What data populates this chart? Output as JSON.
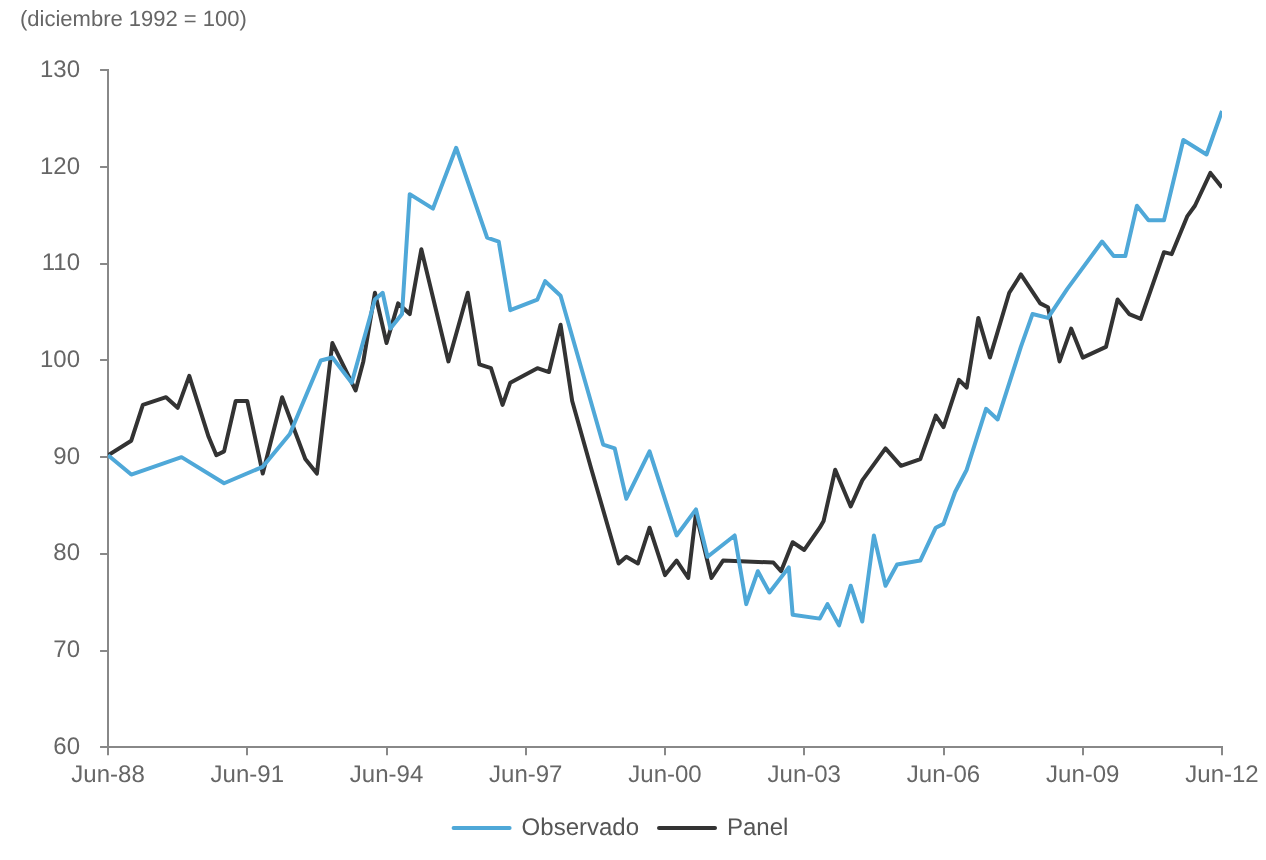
{
  "chart_data": {
    "type": "line",
    "ylabel": "(diciembre 1992 = 100)",
    "xlim": [
      "1988-06",
      "2012-06"
    ],
    "xticks": [
      {
        "value": "1988-06",
        "label": "Jun-88"
      },
      {
        "value": "1991-06",
        "label": "Jun-91"
      },
      {
        "value": "1994-06",
        "label": "Jun-94"
      },
      {
        "value": "1997-06",
        "label": "Jun-97"
      },
      {
        "value": "2000-06",
        "label": "Jun-00"
      },
      {
        "value": "2003-06",
        "label": "Jun-03"
      },
      {
        "value": "2006-06",
        "label": "Jun-06"
      },
      {
        "value": "2009-06",
        "label": "Jun-09"
      },
      {
        "value": "2012-06",
        "label": "Jun-12"
      }
    ],
    "ylim": [
      60,
      130
    ],
    "yticks": [
      60,
      70,
      80,
      90,
      100,
      110,
      120,
      130
    ],
    "grid": false,
    "legend": "bottom",
    "marker": "none",
    "line_style": "solid",
    "series": [
      {
        "name": "Observado",
        "color": "#4fa8d8",
        "x": [
          "1988-06",
          "1988-12",
          "1990-01",
          "1990-12",
          "1991-10",
          "1992-05",
          "1993-01",
          "1993-04",
          "1993-09",
          "1994-03",
          "1994-05",
          "1994-07",
          "1994-10",
          "1994-12",
          "1995-06",
          "1995-12",
          "1996-08",
          "1996-11",
          "1997-02",
          "1997-09",
          "1997-11",
          "1998-03",
          "1999-02",
          "1999-05",
          "1999-08",
          "2000-02",
          "2000-09",
          "2001-02",
          "2001-05",
          "2001-12",
          "2002-03",
          "2002-06",
          "2002-09",
          "2003-02",
          "2003-03",
          "2003-10",
          "2003-12",
          "2004-03",
          "2004-06",
          "2004-09",
          "2004-12",
          "2005-03",
          "2005-06",
          "2005-12",
          "2006-04",
          "2006-06",
          "2006-09",
          "2006-12",
          "2007-05",
          "2007-08",
          "2008-02",
          "2008-05",
          "2008-09",
          "2009-02",
          "2009-11",
          "2010-02",
          "2010-05",
          "2010-08",
          "2010-11",
          "2011-03",
          "2011-08",
          "2012-02",
          "2012-06"
        ],
        "values": [
          90.2,
          88.2,
          90,
          87.3,
          89,
          92.4,
          100,
          100.3,
          97.7,
          106.3,
          107,
          103.3,
          104.8,
          117.2,
          115.7,
          122,
          112.7,
          112.3,
          105.2,
          106.3,
          108.2,
          106.7,
          91.3,
          90.9,
          85.7,
          90.6,
          81.9,
          84.6,
          79.7,
          81.9,
          74.8,
          78.2,
          76,
          78.6,
          73.7,
          73.3,
          74.8,
          72.6,
          76.7,
          73,
          81.9,
          76.7,
          78.9,
          79.3,
          82.7,
          83.1,
          86.4,
          88.7,
          95,
          93.9,
          101.4,
          104.8,
          104.4,
          107.4,
          112.3,
          110.8,
          110.8,
          116,
          114.5,
          114.5,
          122.8,
          121.3,
          125.8
        ]
      },
      {
        "name": "Panel",
        "color": "#333333",
        "x": [
          "1988-06",
          "1988-12",
          "1989-03",
          "1989-09",
          "1989-12",
          "1990-03",
          "1990-08",
          "1990-10",
          "1990-12",
          "1991-03",
          "1991-06",
          "1991-10",
          "1992-03",
          "1992-09",
          "1992-12",
          "1993-04",
          "1993-10",
          "1993-12",
          "1994-03",
          "1994-06",
          "1994-09",
          "1994-12",
          "1995-03",
          "1995-10",
          "1996-03",
          "1996-06",
          "1996-09",
          "1996-12",
          "1997-02",
          "1997-09",
          "1997-12",
          "1998-03",
          "1998-06",
          "1998-11",
          "1999-06",
          "1999-08",
          "1999-11",
          "2000-02",
          "2000-06",
          "2000-09",
          "2000-12",
          "2001-02",
          "2001-06",
          "2001-09",
          "2002-10",
          "2002-12",
          "2003-03",
          "2003-06",
          "2003-10",
          "2003-11",
          "2004-02",
          "2004-06",
          "2004-09",
          "2005-03",
          "2005-07",
          "2005-12",
          "2006-04",
          "2006-06",
          "2006-10",
          "2006-12",
          "2007-03",
          "2007-06",
          "2007-11",
          "2008-02",
          "2008-07",
          "2008-09",
          "2008-12",
          "2009-03",
          "2009-06",
          "2009-12",
          "2010-03",
          "2010-06",
          "2010-09",
          "2011-03",
          "2011-05",
          "2011-09",
          "2011-11",
          "2012-03",
          "2012-06"
        ],
        "values": [
          90.2,
          91.7,
          95.4,
          96.2,
          95.1,
          98.4,
          92.1,
          90.2,
          90.6,
          95.8,
          95.8,
          88.3,
          96.2,
          89.8,
          88.3,
          101.8,
          96.9,
          99.9,
          107,
          101.8,
          105.9,
          104.8,
          111.5,
          99.9,
          107,
          99.6,
          99.2,
          95.4,
          97.7,
          99.2,
          98.8,
          103.7,
          95.8,
          88.7,
          79,
          79.7,
          79,
          82.7,
          77.8,
          79.3,
          77.5,
          84.2,
          77.5,
          79.3,
          79.1,
          78.2,
          81.2,
          80.4,
          82.7,
          83.4,
          88.7,
          84.9,
          87.6,
          90.9,
          89.1,
          89.8,
          94.3,
          93.1,
          98,
          97.2,
          104.4,
          100.3,
          107,
          108.9,
          105.9,
          105.5,
          99.9,
          103.3,
          100.3,
          101.4,
          106.3,
          104.8,
          104.3,
          111.2,
          111,
          114.9,
          116,
          119.4,
          117.9
        ]
      }
    ]
  }
}
